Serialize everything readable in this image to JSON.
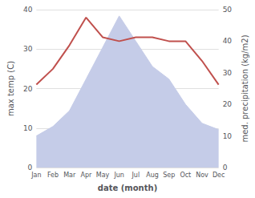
{
  "chart_data": {
    "type": "line",
    "xlabel": "date (month)",
    "ylabel": "max temp (C)",
    "y2label": "med. precipitation (kg/m2)",
    "categories": [
      "Jan",
      "Feb",
      "Mar",
      "Apr",
      "May",
      "Jun",
      "Jul",
      "Aug",
      "Sep",
      "Oct",
      "Nov",
      "Dec"
    ],
    "series": [
      {
        "type": "area",
        "axis": "y2",
        "color": "#c5cce8",
        "values": [
          10,
          13,
          18,
          28,
          38,
          48,
          40,
          32,
          28,
          20,
          14,
          12
        ]
      },
      {
        "type": "line",
        "color": "#c0504d",
        "values": [
          21,
          25,
          31,
          38,
          33,
          32,
          33,
          33,
          32,
          32,
          27,
          21
        ]
      }
    ],
    "ylim": [
      0,
      40
    ],
    "yticks": [
      0,
      10,
      20,
      30,
      40
    ],
    "y2lim": [
      0,
      50
    ],
    "y2ticks": [
      0,
      10,
      20,
      30,
      40,
      50
    ],
    "grid": true
  }
}
